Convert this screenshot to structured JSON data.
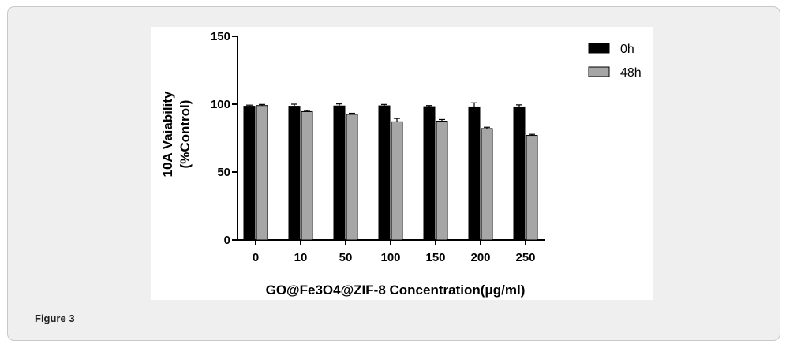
{
  "figure": {
    "caption": "Figure 3"
  },
  "chart_data": {
    "type": "bar",
    "title": "",
    "xlabel": "GO@Fe3O4@ZIF-8 Concentration(μg/ml)",
    "ylabel_lines": [
      "10A Vaiability",
      "(%Control)"
    ],
    "ylim": [
      0,
      150
    ],
    "yticks": [
      0,
      50,
      100,
      150
    ],
    "categories": [
      "0",
      "10",
      "50",
      "100",
      "150",
      "200",
      "250"
    ],
    "series": [
      {
        "name": "0h",
        "color": "#000000",
        "values": [
          98.5,
          98.5,
          98.7,
          98.8,
          98.2,
          98.0,
          98.0
        ],
        "errors": [
          0.8,
          1.5,
          1.5,
          1.0,
          0.8,
          3.0,
          1.5
        ]
      },
      {
        "name": "48h",
        "color": "#a6a6a6",
        "values": [
          99.0,
          94.5,
          92.5,
          87.0,
          87.5,
          82.0,
          77.0
        ],
        "errors": [
          0.8,
          0.8,
          0.8,
          2.5,
          1.2,
          1.0,
          0.8
        ]
      }
    ],
    "legend_position": "top-right",
    "grid": false
  }
}
